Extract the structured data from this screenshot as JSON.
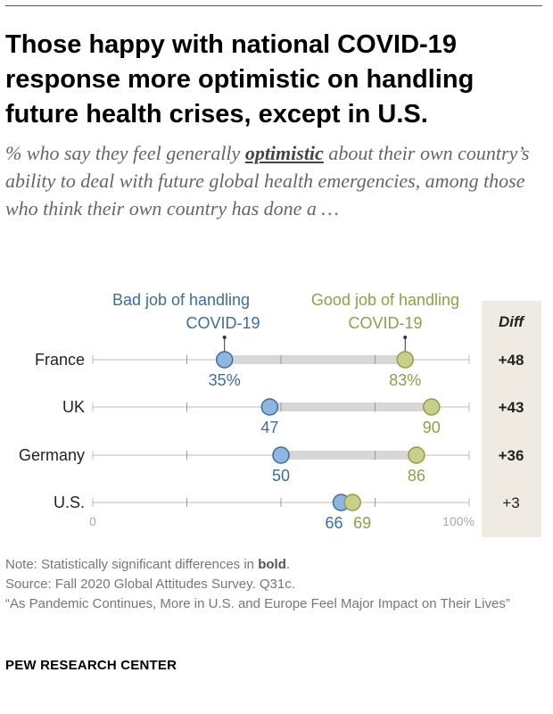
{
  "title": "Those happy with national COVID-19 response more optimistic on handling future health crises, except in U.S.",
  "subtitle": {
    "before": "% who say they feel generally ",
    "emphasis": "optimistic",
    "after": " about their own country’s ability to deal with future global health emergencies, among those who think their own country has done a …"
  },
  "notes": {
    "note_prefix": "Note: Statistically significant differences in ",
    "note_bold": "bold",
    "note_suffix": ".",
    "source": "Source: Fall 2020 Global Attitudes Survey. Q31c.",
    "report": "“As Pandemic Continues, More in U.S. and Europe Feel Major Impact on Their Lives”"
  },
  "brand": "PEW RESEARCH CENTER",
  "colors": {
    "bad": "#3b6e9e",
    "bad_fill": "#8fb6e0",
    "good": "#949d48",
    "good_fill": "#c9cf8a",
    "bar": "#d7d7d7",
    "axis": "#bbbbbb",
    "diff_bg": "#efebe2"
  },
  "chart_data": {
    "type": "dot-plot",
    "categories": [
      "France",
      "UK",
      "Germany",
      "U.S."
    ],
    "series": [
      {
        "name": "Bad job of handling COVID-19",
        "legend_lines": [
          "Bad job of handling",
          "COVID-19"
        ],
        "values": [
          35,
          47,
          50,
          66
        ],
        "labels": [
          "35%",
          "47",
          "50",
          "66"
        ]
      },
      {
        "name": "Good job of handling COVID-19",
        "legend_lines": [
          "Good job of handling",
          "COVID-19"
        ],
        "values": [
          83,
          90,
          86,
          69
        ],
        "labels": [
          "83%",
          "90",
          "86",
          "69"
        ]
      }
    ],
    "diff": {
      "header": "Diff",
      "values": [
        "+48",
        "+43",
        "+36",
        "+3"
      ],
      "significant": [
        true,
        true,
        true,
        false
      ]
    },
    "xlim": [
      0,
      100
    ],
    "xticks": [
      {
        "value": 0,
        "label": "0"
      },
      {
        "value": 100,
        "label": "100%"
      }
    ],
    "midticks": [
      25,
      50,
      75
    ]
  }
}
